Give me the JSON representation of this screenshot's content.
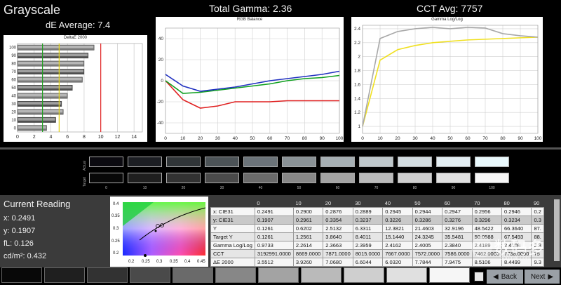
{
  "headers": {
    "app_title": "Grayscale",
    "de_average": "dE Average: 7.4",
    "total_gamma": "Total Gamma: 2.36",
    "cct_avg": "CCT Avg: 7757"
  },
  "de_chart": {
    "title": "DeltaE 2000",
    "type": "bar",
    "x_ticks": [
      "0",
      "2",
      "4",
      "6",
      "8",
      "10",
      "12",
      "14"
    ],
    "categories": [
      "100",
      "90",
      "80",
      "70",
      "60",
      "50",
      "40",
      "30",
      "20",
      "10",
      "0"
    ],
    "values": [
      9.2,
      8.5,
      8.0,
      8.0,
      7.8,
      6.6,
      6.0,
      5.3,
      5.5,
      4.6,
      3.5
    ],
    "markers": {
      "green": 3.0,
      "yellow": 5.0,
      "red": 10.0
    }
  },
  "rgb_chart": {
    "title": "RGB Balance",
    "type": "line",
    "x_ticks": [
      "0",
      "10",
      "20",
      "30",
      "40",
      "50",
      "60",
      "70",
      "80",
      "90",
      "100"
    ],
    "y_ticks": [
      "40",
      "20",
      "0",
      "-20",
      "-40"
    ],
    "x": [
      0,
      10,
      20,
      30,
      40,
      50,
      60,
      70,
      80,
      90,
      100
    ],
    "series": [
      {
        "color": "#e02020",
        "values": [
          0,
          -18,
          -26,
          -24,
          -20,
          -20,
          -20,
          -19,
          -19,
          -19,
          -19
        ]
      },
      {
        "color": "#10a020",
        "values": [
          0,
          -12,
          -11,
          -9,
          -7,
          -5,
          -3,
          0,
          2,
          3,
          5
        ]
      },
      {
        "color": "#2030c0",
        "values": [
          6,
          -5,
          -10,
          -8,
          -6,
          -3,
          0,
          2,
          4,
          6,
          9
        ]
      }
    ]
  },
  "gamma_chart": {
    "title": "Gamma Log/Log",
    "type": "line",
    "x_ticks": [
      "0",
      "10",
      "20",
      "30",
      "40",
      "50",
      "60",
      "70",
      "80",
      "90",
      "100"
    ],
    "y_ticks": [
      "2.4",
      "2.2",
      "2",
      "1.8",
      "1.6",
      "1.4",
      "1.2",
      "1"
    ],
    "x": [
      0,
      10,
      20,
      30,
      40,
      50,
      60,
      70,
      80,
      90,
      100
    ],
    "series": [
      {
        "color": "#f0e020",
        "values": [
          1.0,
          1.95,
          2.1,
          2.16,
          2.2,
          2.22,
          2.24,
          2.25,
          2.26,
          2.27,
          2.28
        ]
      },
      {
        "color": "#a8a8a8",
        "values": [
          1.0,
          2.26,
          2.36,
          2.4,
          2.42,
          2.4,
          2.42,
          2.41,
          2.33,
          2.3,
          2.28
        ]
      }
    ]
  },
  "swatches": {
    "actual_label": "Actual",
    "target_label": "Target",
    "labels": [
      "0",
      "10",
      "20",
      "30",
      "40",
      "50",
      "60",
      "70",
      "80",
      "90",
      "100"
    ],
    "actual_colors": [
      "#0b0a10",
      "#1c1e23",
      "#303538",
      "#4c5357",
      "#6b7379",
      "#8a9296",
      "#a6afb3",
      "#bec7cb",
      "#d3dce1",
      "#e2edf2",
      "#e8f8fc"
    ],
    "target_colors": [
      "#080808",
      "#1f1f1f",
      "#323232",
      "#4a4a4a",
      "#6a6a6a",
      "#878787",
      "#a3a3a3",
      "#bababa",
      "#cfcfcf",
      "#e0e0e0",
      "#f6f6f6"
    ]
  },
  "reading": {
    "title": "Current Reading",
    "x": "x: 0.2491",
    "y": "y: 0.1907",
    "fl": "fL: 0.126",
    "cdm2": "cd/m²: 0.432"
  },
  "cie_chart": {
    "y_ticks": [
      "0.4",
      "0.35",
      "0.3",
      "0.25",
      "0.2"
    ],
    "x_ticks": [
      "0.2",
      "0.25",
      "0.3",
      "0.35",
      "0.4",
      "0.45"
    ]
  },
  "table": {
    "header": [
      "",
      "0",
      "10",
      "20",
      "30",
      "40",
      "50",
      "60",
      "70",
      "80",
      "90"
    ],
    "rows": [
      [
        "x: CIE31",
        "0.2491",
        "0.2900",
        "0.2876",
        "0.2889",
        "0.2945",
        "0.2944",
        "0.2947",
        "0.2956",
        "0.2946",
        "0.2"
      ],
      [
        "y: CIE31",
        "0.1907",
        "0.2961",
        "0.3354",
        "0.3237",
        "0.3226",
        "0.3286",
        "0.3276",
        "0.3296",
        "0.3234",
        "0.3"
      ],
      [
        "Y",
        "0.1261",
        "0.6202",
        "2.5132",
        "6.3311",
        "12.3821",
        "21.4603",
        "32.9196",
        "48.5422",
        "66.3640",
        "87."
      ],
      [
        "Target Y",
        "0.1261",
        "1.2561",
        "3.8640",
        "8.4011",
        "15.1440",
        "24.3245",
        "35.5481",
        "50.0588",
        "67.5493",
        "88."
      ],
      [
        "Gamma Log/Log",
        "0.9733",
        "2.2614",
        "2.3663",
        "2.3959",
        "2.4162",
        "2.4005",
        "2.3840",
        "2.4189",
        "2.4108",
        "2.3"
      ],
      [
        "CCT",
        "3192991.0000",
        "8669.0000",
        "7871.0000",
        "8015.0000",
        "7667.0000",
        "7572.0000",
        "7586.0000",
        "7462.0000",
        "7738.0000",
        "75"
      ],
      [
        "ΔE 2000",
        "3.5512",
        "3.9260",
        "7.0680",
        "6.6044",
        "6.0320",
        "7.7844",
        "7.9475",
        "8.5106",
        "8.4499",
        "9.3"
      ]
    ]
  },
  "watermark": {
    "text": "数码多",
    "sub": "Soomal.com"
  },
  "buttons": {
    "back": "Back",
    "next": "Next"
  }
}
